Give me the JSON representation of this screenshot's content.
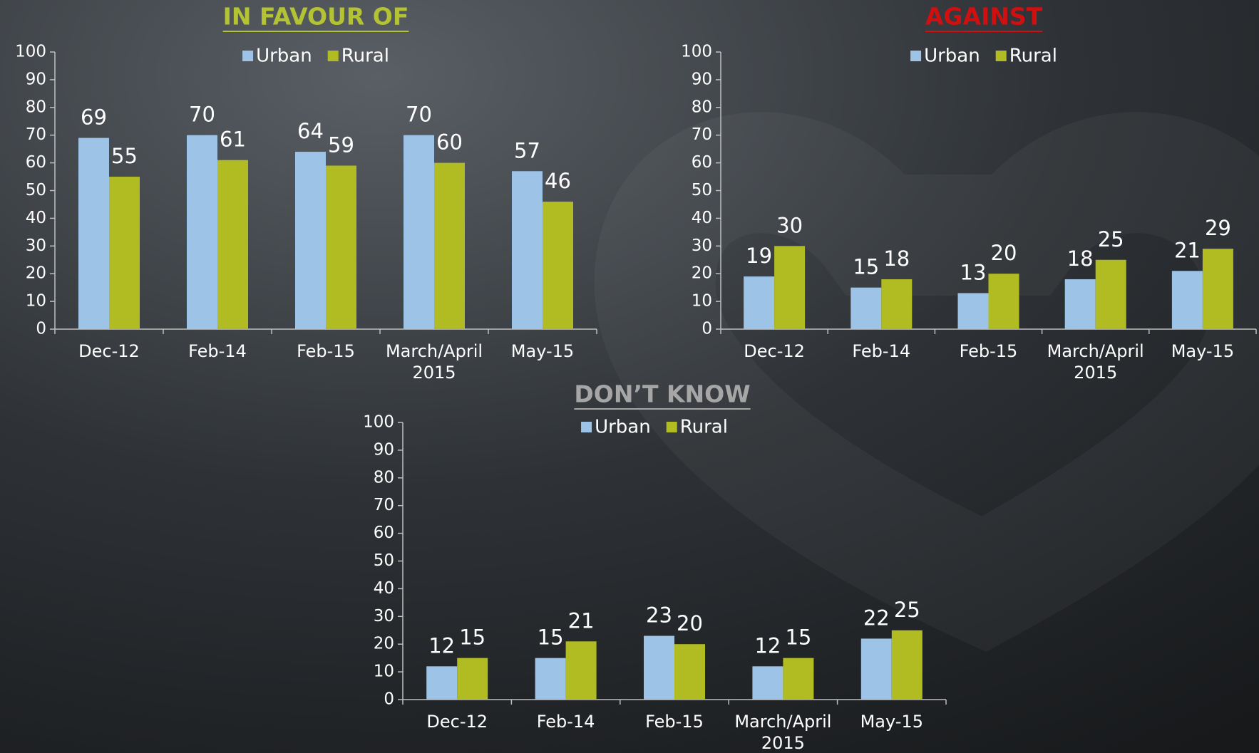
{
  "chart_data": [
    {
      "type": "bar",
      "title": "IN FAVOUR OF",
      "title_color": "#b3c334",
      "categories": [
        "Dec-12",
        "Feb-14",
        "Feb-15",
        "March/April 2015",
        "May-15"
      ],
      "series": [
        {
          "name": "Urban",
          "color": "#9dc3e6",
          "values": [
            69,
            70,
            64,
            70,
            57
          ]
        },
        {
          "name": "Rural",
          "color": "#b0bc22",
          "values": [
            55,
            61,
            59,
            60,
            46
          ]
        }
      ],
      "ylim": [
        0,
        100
      ],
      "yticks": [
        0,
        10,
        20,
        30,
        40,
        50,
        60,
        70,
        80,
        90,
        100
      ],
      "legend": "top"
    },
    {
      "type": "bar",
      "title": "AGAINST",
      "title_color": "#d01010",
      "categories": [
        "Dec-12",
        "Feb-14",
        "Feb-15",
        "March/April 2015",
        "May-15"
      ],
      "series": [
        {
          "name": "Urban",
          "color": "#9dc3e6",
          "values": [
            19,
            15,
            13,
            18,
            21
          ]
        },
        {
          "name": "Rural",
          "color": "#b0bc22",
          "values": [
            30,
            18,
            20,
            25,
            29
          ]
        }
      ],
      "ylim": [
        0,
        100
      ],
      "yticks": [
        0,
        10,
        20,
        30,
        40,
        50,
        60,
        70,
        80,
        90,
        100
      ],
      "legend": "top"
    },
    {
      "type": "bar",
      "title": "DON’T KNOW",
      "title_color": "#a6a6a6",
      "categories": [
        "Dec-12",
        "Feb-14",
        "Feb-15",
        "March/April 2015",
        "May-15"
      ],
      "series": [
        {
          "name": "Urban",
          "color": "#9dc3e6",
          "values": [
            12,
            15,
            23,
            12,
            22
          ]
        },
        {
          "name": "Rural",
          "color": "#b0bc22",
          "values": [
            15,
            21,
            20,
            15,
            25
          ]
        }
      ],
      "ylim": [
        0,
        100
      ],
      "yticks": [
        0,
        10,
        20,
        30,
        40,
        50,
        60,
        70,
        80,
        90,
        100
      ],
      "legend": "top"
    }
  ]
}
